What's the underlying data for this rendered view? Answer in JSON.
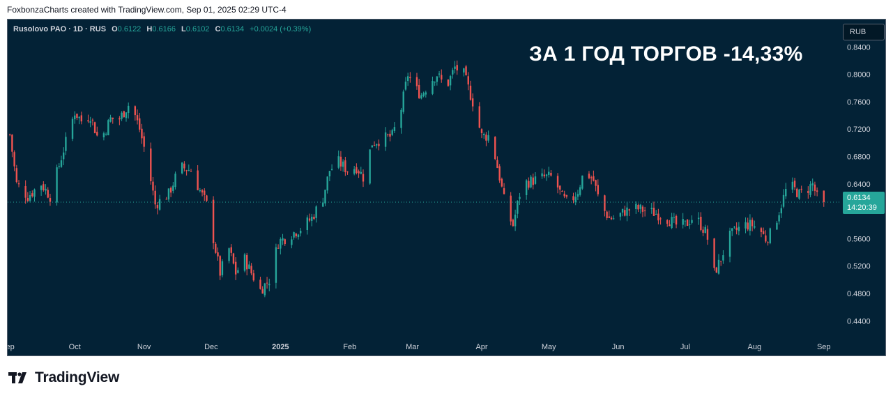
{
  "credit": "FoxbonzaCharts created with TradingView.com, Sep 01, 2025 02:29 UTC-4",
  "legend": {
    "symbol": "Rusolovo PAO · 1D · RUS",
    "open_label": "O",
    "open": "0.6122",
    "high_label": "H",
    "high": "0.6166",
    "low_label": "L",
    "low": "0.6102",
    "close_label": "C",
    "close": "0.6134",
    "change": "+0.0024 (+0.39%)"
  },
  "currency": "RUB",
  "headline": "ЗА 1 ГОД ТОРГОВ -14,33%",
  "price_badge": {
    "price": "0.6134",
    "countdown": "14:20:39"
  },
  "brand": "TradingView",
  "colors": {
    "up": "#26a69a",
    "down": "#ef5350",
    "background": "#032236",
    "axis_text": "#d1d4dc"
  },
  "chart_data": {
    "type": "candlestick",
    "ylim": [
      0.42,
      0.88
    ],
    "y_ticks": [
      "0.4400",
      "0.4800",
      "0.5200",
      "0.5600",
      "0.6000",
      "0.6400",
      "0.6800",
      "0.7200",
      "0.7600",
      "0.8000",
      "0.8400"
    ],
    "x_ticks": [
      {
        "label": "Sep",
        "date": "2024-09-01"
      },
      {
        "label": "Oct",
        "date": "2024-10-01"
      },
      {
        "label": "Nov",
        "date": "2024-11-01"
      },
      {
        "label": "Dec",
        "date": "2024-12-01"
      },
      {
        "label": "2025",
        "date": "2025-01-01"
      },
      {
        "label": "Feb",
        "date": "2025-02-01"
      },
      {
        "label": "Mar",
        "date": "2025-03-01"
      },
      {
        "label": "Apr",
        "date": "2025-04-01"
      },
      {
        "label": "May",
        "date": "2025-05-01"
      },
      {
        "label": "Jun",
        "date": "2025-06-01"
      },
      {
        "label": "Jul",
        "date": "2025-07-01"
      },
      {
        "label": "Aug",
        "date": "2025-08-01"
      },
      {
        "label": "Sep",
        "date": "2025-09-01"
      }
    ],
    "x_range": [
      "2024-09-01",
      "2025-09-07"
    ],
    "last_price": 0.6134,
    "close_series": [
      {
        "date": "2024-09-02",
        "close": 0.712
      },
      {
        "date": "2024-09-05",
        "close": 0.64
      },
      {
        "date": "2024-09-10",
        "close": 0.622
      },
      {
        "date": "2024-09-16",
        "close": 0.64
      },
      {
        "date": "2024-09-20",
        "close": 0.622
      },
      {
        "date": "2024-09-26",
        "close": 0.69
      },
      {
        "date": "2024-10-01",
        "close": 0.745
      },
      {
        "date": "2024-10-04",
        "close": 0.732
      },
      {
        "date": "2024-10-08",
        "close": 0.74
      },
      {
        "date": "2024-10-12",
        "close": 0.7
      },
      {
        "date": "2024-10-17",
        "close": 0.735
      },
      {
        "date": "2024-10-21",
        "close": 0.735
      },
      {
        "date": "2024-10-26",
        "close": 0.76
      },
      {
        "date": "2024-10-30",
        "close": 0.72
      },
      {
        "date": "2024-11-02",
        "close": 0.68
      },
      {
        "date": "2024-11-06",
        "close": 0.61
      },
      {
        "date": "2024-11-12",
        "close": 0.625
      },
      {
        "date": "2024-11-17",
        "close": 0.665
      },
      {
        "date": "2024-11-22",
        "close": 0.66
      },
      {
        "date": "2024-11-26",
        "close": 0.63
      },
      {
        "date": "2024-11-29",
        "close": 0.61
      },
      {
        "date": "2024-12-02",
        "close": 0.56
      },
      {
        "date": "2024-12-05",
        "close": 0.51
      },
      {
        "date": "2024-12-09",
        "close": 0.545
      },
      {
        "date": "2024-12-12",
        "close": 0.51
      },
      {
        "date": "2024-12-16",
        "close": 0.53
      },
      {
        "date": "2024-12-19",
        "close": 0.51
      },
      {
        "date": "2024-12-23",
        "close": 0.485
      },
      {
        "date": "2024-12-27",
        "close": 0.5
      },
      {
        "date": "2024-12-31",
        "close": 0.555
      },
      {
        "date": "2025-01-05",
        "close": 0.565
      },
      {
        "date": "2025-01-10",
        "close": 0.575
      },
      {
        "date": "2025-01-15",
        "close": 0.59
      },
      {
        "date": "2025-01-20",
        "close": 0.62
      },
      {
        "date": "2025-01-23",
        "close": 0.66
      },
      {
        "date": "2025-01-27",
        "close": 0.672
      },
      {
        "date": "2025-01-31",
        "close": 0.66
      },
      {
        "date": "2025-02-04",
        "close": 0.665
      },
      {
        "date": "2025-02-07",
        "close": 0.65
      },
      {
        "date": "2025-02-11",
        "close": 0.7
      },
      {
        "date": "2025-02-15",
        "close": 0.705
      },
      {
        "date": "2025-02-20",
        "close": 0.71
      },
      {
        "date": "2025-02-24",
        "close": 0.75
      },
      {
        "date": "2025-02-27",
        "close": 0.8
      },
      {
        "date": "2025-03-02",
        "close": 0.78
      },
      {
        "date": "2025-03-05",
        "close": 0.77
      },
      {
        "date": "2025-03-09",
        "close": 0.79
      },
      {
        "date": "2025-03-12",
        "close": 0.8
      },
      {
        "date": "2025-03-16",
        "close": 0.78
      },
      {
        "date": "2025-03-20",
        "close": 0.81
      },
      {
        "date": "2025-03-24",
        "close": 0.8
      },
      {
        "date": "2025-03-28",
        "close": 0.76
      },
      {
        "date": "2025-04-01",
        "close": 0.71
      },
      {
        "date": "2025-04-05",
        "close": 0.71
      },
      {
        "date": "2025-04-09",
        "close": 0.65
      },
      {
        "date": "2025-04-12",
        "close": 0.6
      },
      {
        "date": "2025-04-15",
        "close": 0.58
      },
      {
        "date": "2025-04-19",
        "close": 0.64
      },
      {
        "date": "2025-04-24",
        "close": 0.645
      },
      {
        "date": "2025-04-29",
        "close": 0.65
      },
      {
        "date": "2025-05-03",
        "close": 0.65
      },
      {
        "date": "2025-05-07",
        "close": 0.62
      },
      {
        "date": "2025-05-10",
        "close": 0.61
      },
      {
        "date": "2025-05-14",
        "close": 0.63
      },
      {
        "date": "2025-05-17",
        "close": 0.66
      },
      {
        "date": "2025-05-21",
        "close": 0.645
      },
      {
        "date": "2025-05-24",
        "close": 0.61
      },
      {
        "date": "2025-05-28",
        "close": 0.59
      },
      {
        "date": "2025-05-31",
        "close": 0.59
      },
      {
        "date": "2025-06-04",
        "close": 0.6
      },
      {
        "date": "2025-06-08",
        "close": 0.605
      },
      {
        "date": "2025-06-12",
        "close": 0.602
      },
      {
        "date": "2025-06-17",
        "close": 0.598
      },
      {
        "date": "2025-06-22",
        "close": 0.592
      },
      {
        "date": "2025-06-27",
        "close": 0.58
      },
      {
        "date": "2025-07-01",
        "close": 0.58
      },
      {
        "date": "2025-07-04",
        "close": 0.59
      },
      {
        "date": "2025-07-07",
        "close": 0.585
      },
      {
        "date": "2025-07-10",
        "close": 0.57
      },
      {
        "date": "2025-07-12",
        "close": 0.55
      },
      {
        "date": "2025-07-14",
        "close": 0.51
      },
      {
        "date": "2025-07-17",
        "close": 0.53
      },
      {
        "date": "2025-07-20",
        "close": 0.56
      },
      {
        "date": "2025-07-23",
        "close": 0.57
      },
      {
        "date": "2025-07-27",
        "close": 0.58
      },
      {
        "date": "2025-07-31",
        "close": 0.58
      },
      {
        "date": "2025-08-03",
        "close": 0.575
      },
      {
        "date": "2025-08-06",
        "close": 0.56
      },
      {
        "date": "2025-08-09",
        "close": 0.57
      },
      {
        "date": "2025-08-12",
        "close": 0.6
      },
      {
        "date": "2025-08-15",
        "close": 0.63
      },
      {
        "date": "2025-08-18",
        "close": 0.635
      },
      {
        "date": "2025-08-21",
        "close": 0.625
      },
      {
        "date": "2025-08-24",
        "close": 0.63
      },
      {
        "date": "2025-08-27",
        "close": 0.64
      },
      {
        "date": "2025-08-29",
        "close": 0.62
      },
      {
        "date": "2025-09-01",
        "close": 0.6134
      }
    ]
  }
}
